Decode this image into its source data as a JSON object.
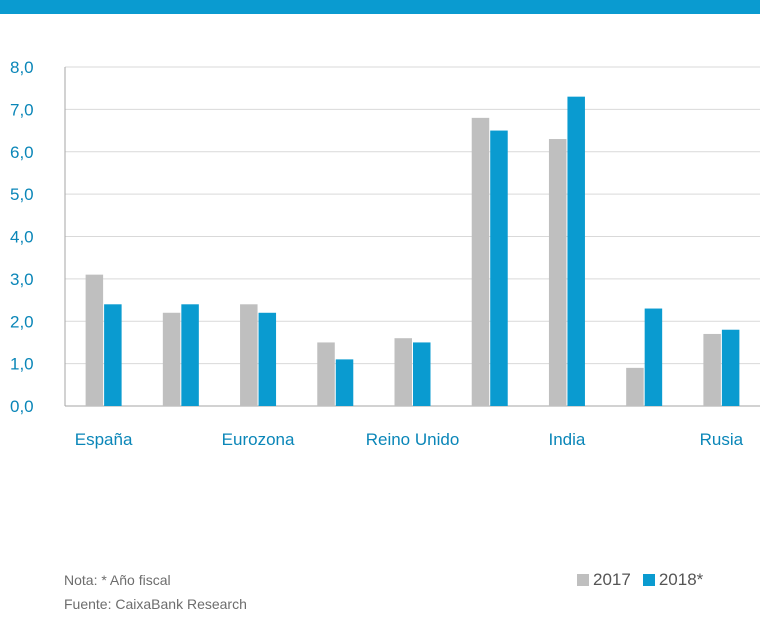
{
  "notes": {
    "note": "Nota: * Año fiscal",
    "source": "Fuente: CaixaBank Research"
  },
  "chart_data": {
    "type": "bar",
    "categories": [
      "España",
      "",
      "Eurozona",
      "",
      "Reino Unido",
      "",
      "India",
      "",
      "Rusia"
    ],
    "series": [
      {
        "name": "2017",
        "color": "#bfbfbf",
        "values": [
          3.1,
          2.2,
          2.4,
          1.5,
          1.6,
          6.8,
          6.3,
          0.9,
          1.7
        ]
      },
      {
        "name": "2018*",
        "color": "#0a9bd0",
        "values": [
          2.4,
          2.4,
          2.2,
          1.1,
          1.5,
          6.5,
          7.3,
          2.3,
          1.8
        ]
      }
    ],
    "yticks": [
      "0,0",
      "1,0",
      "2,0",
      "3,0",
      "4,0",
      "5,0",
      "6,0",
      "7,0",
      "8,0"
    ],
    "ylim": [
      0,
      8
    ],
    "grid": true,
    "legend_position": "bottom-right"
  }
}
